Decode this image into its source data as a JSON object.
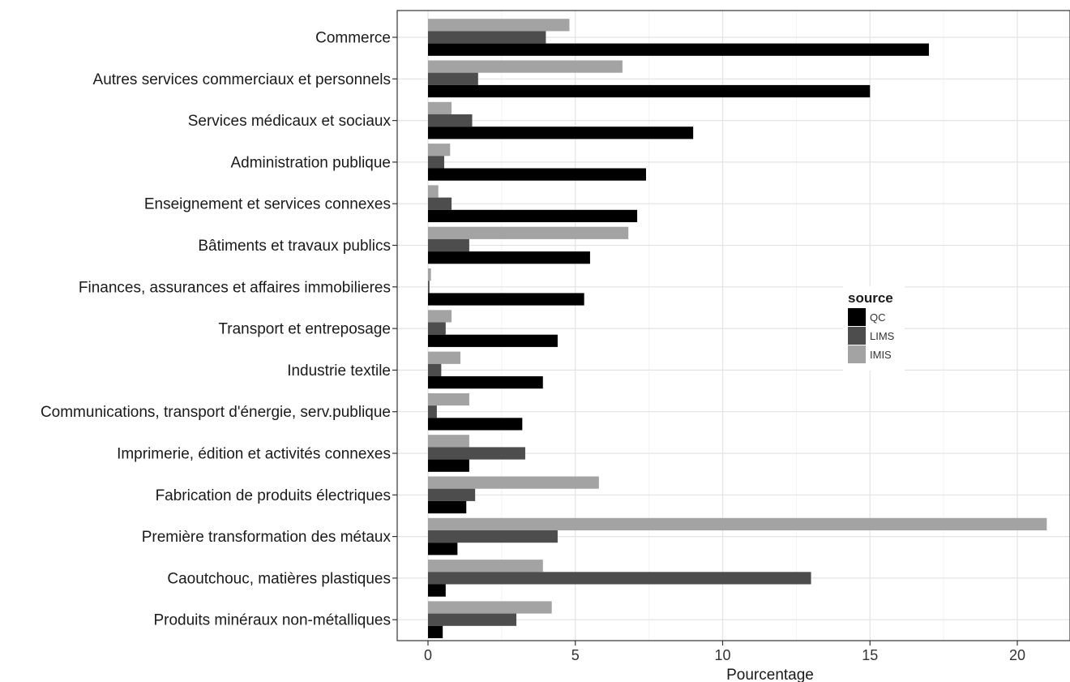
{
  "chart_data": {
    "type": "bar",
    "orientation": "horizontal",
    "title": "",
    "xlabel": "Pourcentage",
    "ylabel": "",
    "xlim": [
      0,
      21.5
    ],
    "x_ticks": [
      0,
      5,
      10,
      15,
      20
    ],
    "grid": true,
    "legend_position": "right",
    "legend_title": "source",
    "categories": [
      "Commerce",
      "Autres services commerciaux et personnels",
      "Services médicaux et sociaux",
      "Administration publique",
      "Enseignement et services connexes",
      "Bâtiments et travaux publics",
      "Finances, assurances et affaires immobilieres",
      "Transport et entreposage",
      "Industrie textile",
      "Communications, transport d'énergie, serv.publique",
      "Imprimerie, édition et activités connexes",
      "Fabrication de produits électriques",
      "Première transformation des métaux",
      "Caoutchouc, matières plastiques",
      "Produits minéraux non-métalliques"
    ],
    "series": [
      {
        "name": "QC",
        "color": "#000000",
        "values": [
          17.0,
          15.0,
          9.0,
          7.4,
          7.1,
          5.5,
          5.3,
          4.4,
          3.9,
          3.2,
          1.4,
          1.3,
          1.0,
          0.6,
          0.5
        ]
      },
      {
        "name": "LIMS",
        "color": "#4d4d4d",
        "values": [
          4.0,
          1.7,
          1.5,
          0.55,
          0.8,
          1.4,
          0.05,
          0.6,
          0.45,
          0.3,
          3.3,
          1.6,
          4.4,
          13.0,
          3.0
        ]
      },
      {
        "name": "IMIS",
        "color": "#a3a3a3",
        "values": [
          4.8,
          6.6,
          0.8,
          0.75,
          0.35,
          6.8,
          0.1,
          0.8,
          1.1,
          1.4,
          1.4,
          5.8,
          21.0,
          3.9,
          4.2
        ]
      }
    ]
  }
}
